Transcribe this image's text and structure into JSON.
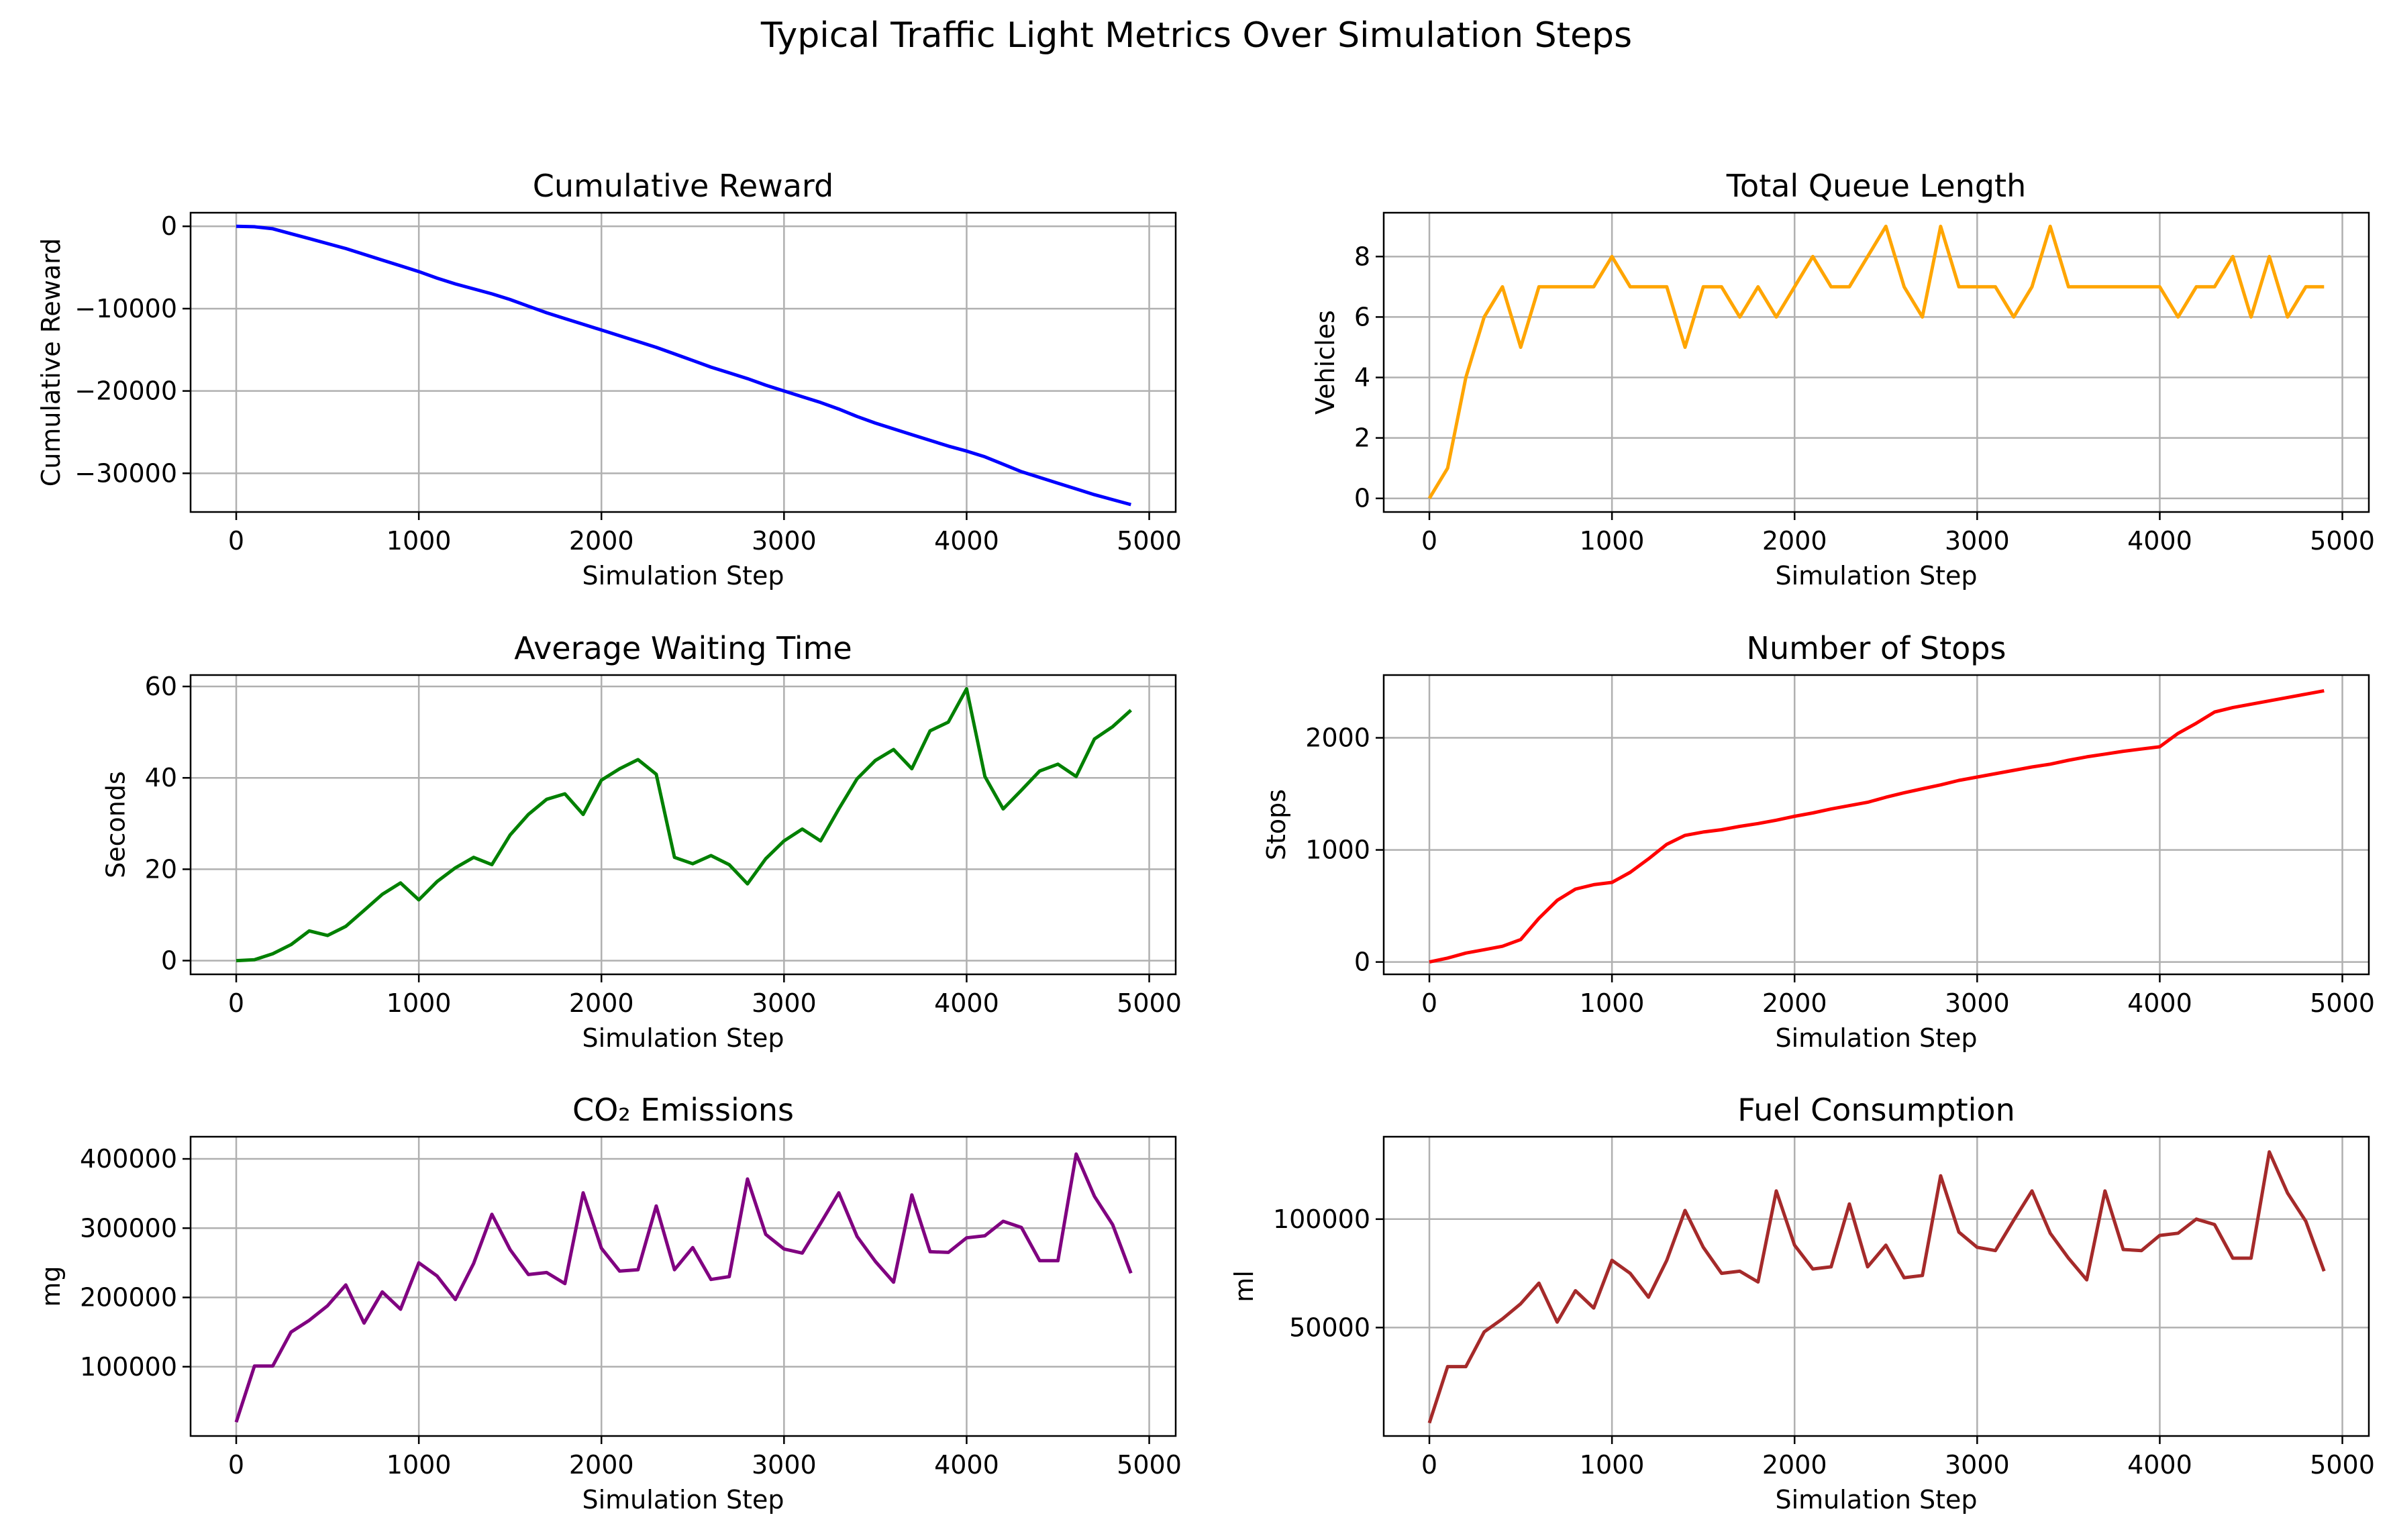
{
  "figure": {
    "title": "Typical Traffic Light Metrics Over Simulation Steps"
  },
  "chart_data": [
    {
      "type": "line",
      "title": "Cumulative Reward",
      "xlabel": "Simulation Step",
      "ylabel": "Cumulative Reward",
      "xlim": [
        -250,
        5145
      ],
      "ylim": [
        -34700,
        1650
      ],
      "xticks": [
        0,
        1000,
        2000,
        3000,
        4000,
        5000
      ],
      "yticks": [
        0,
        -10000,
        -20000,
        -30000
      ],
      "ytick_labels": [
        "0",
        "−10000",
        "−20000",
        "−30000"
      ],
      "grid": true,
      "color": "#0000ff",
      "x": [
        0,
        100,
        200,
        300,
        400,
        500,
        600,
        700,
        800,
        900,
        1000,
        1100,
        1200,
        1300,
        1400,
        1500,
        1600,
        1700,
        1800,
        1900,
        2000,
        2100,
        2200,
        2300,
        2400,
        2500,
        2600,
        2700,
        2800,
        2900,
        3000,
        3100,
        3200,
        3300,
        3400,
        3500,
        3600,
        3700,
        3800,
        3900,
        4000,
        4100,
        4200,
        4300,
        4400,
        4500,
        4600,
        4700,
        4800,
        4900
      ],
      "y": [
        0,
        -50,
        -300,
        -900,
        -1500,
        -2100,
        -2700,
        -3400,
        -4100,
        -4800,
        -5500,
        -6300,
        -7000,
        -7600,
        -8200,
        -8900,
        -9700,
        -10500,
        -11200,
        -11900,
        -12600,
        -13300,
        -14000,
        -14700,
        -15500,
        -16300,
        -17100,
        -17800,
        -18500,
        -19300,
        -20000,
        -20700,
        -21400,
        -22200,
        -23100,
        -23900,
        -24600,
        -25300,
        -26000,
        -26700,
        -27300,
        -28000,
        -28900,
        -29800,
        -30500,
        -31200,
        -31900,
        -32600,
        -33200,
        -33800
      ]
    },
    {
      "type": "line",
      "title": "Total Queue Length",
      "xlabel": "Simulation Step",
      "ylabel": "Vehicles",
      "xlim": [
        -250,
        5145
      ],
      "ylim": [
        -0.45,
        9.45
      ],
      "xticks": [
        0,
        1000,
        2000,
        3000,
        4000,
        5000
      ],
      "yticks": [
        0,
        2,
        4,
        6,
        8
      ],
      "ytick_labels": [
        "0",
        "2",
        "4",
        "6",
        "8"
      ],
      "grid": true,
      "color": "#ffa500",
      "x": [
        0,
        100,
        200,
        300,
        400,
        500,
        600,
        700,
        800,
        900,
        1000,
        1100,
        1200,
        1300,
        1400,
        1500,
        1600,
        1700,
        1800,
        1900,
        2000,
        2100,
        2200,
        2300,
        2400,
        2500,
        2600,
        2700,
        2800,
        2900,
        3000,
        3100,
        3200,
        3300,
        3400,
        3500,
        3600,
        3700,
        3800,
        3900,
        4000,
        4100,
        4200,
        4300,
        4400,
        4500,
        4600,
        4700,
        4800,
        4900
      ],
      "y": [
        0,
        1,
        4,
        6,
        7,
        5,
        7,
        7,
        7,
        7,
        8,
        7,
        7,
        7,
        5,
        7,
        7,
        6,
        7,
        6,
        7,
        8,
        7,
        7,
        8,
        9,
        7,
        6,
        9,
        7,
        7,
        7,
        6,
        7,
        9,
        7,
        7,
        7,
        7,
        7,
        7,
        6,
        7,
        7,
        8,
        6,
        8,
        6,
        7,
        7
      ]
    },
    {
      "type": "line",
      "title": "Average Waiting Time",
      "xlabel": "Simulation Step",
      "ylabel": "Seconds",
      "xlim": [
        -250,
        5145
      ],
      "ylim": [
        -3,
        62.5
      ],
      "xticks": [
        0,
        1000,
        2000,
        3000,
        4000,
        5000
      ],
      "yticks": [
        0,
        20,
        40,
        60
      ],
      "ytick_labels": [
        "0",
        "20",
        "40",
        "60"
      ],
      "grid": true,
      "color": "#008000",
      "x": [
        0,
        100,
        200,
        300,
        400,
        500,
        600,
        700,
        800,
        900,
        1000,
        1100,
        1200,
        1300,
        1400,
        1500,
        1600,
        1700,
        1800,
        1900,
        2000,
        2100,
        2200,
        2300,
        2400,
        2500,
        2600,
        2700,
        2800,
        2900,
        3000,
        3100,
        3200,
        3300,
        3400,
        3500,
        3600,
        3700,
        3800,
        3900,
        4000,
        4100,
        4200,
        4300,
        4400,
        4500,
        4600,
        4700,
        4800,
        4900
      ],
      "y": [
        0,
        0.2,
        1.5,
        3.5,
        6.5,
        5.5,
        7.5,
        11,
        14.5,
        17,
        13.3,
        17.3,
        20.3,
        22.6,
        21,
        27.5,
        32,
        35.3,
        36.5,
        32,
        39.5,
        42,
        44,
        40.8,
        22.6,
        21.2,
        23,
        21,
        16.8,
        22.3,
        26.2,
        28.8,
        26.2,
        33.2,
        39.8,
        43.8,
        46.2,
        42,
        50.3,
        52.2,
        59.5,
        40.3,
        33.2,
        37.3,
        41.5,
        43,
        40.3,
        48.5,
        51.2,
        54.8
      ]
    },
    {
      "type": "line",
      "title": "Number of Stops",
      "xlabel": "Simulation Step",
      "ylabel": "Stops",
      "xlim": [
        -250,
        5145
      ],
      "ylim": [
        -110,
        2560
      ],
      "xticks": [
        0,
        1000,
        2000,
        3000,
        4000,
        5000
      ],
      "yticks": [
        0,
        1000,
        2000
      ],
      "ytick_labels": [
        "0",
        "1000",
        "2000"
      ],
      "grid": true,
      "color": "#ff0000",
      "x": [
        0,
        100,
        200,
        300,
        400,
        500,
        600,
        700,
        800,
        900,
        1000,
        1100,
        1200,
        1300,
        1400,
        1500,
        1600,
        1700,
        1800,
        1900,
        2000,
        2100,
        2200,
        2300,
        2400,
        2500,
        2600,
        2700,
        2800,
        2900,
        3000,
        3100,
        3200,
        3300,
        3400,
        3500,
        3600,
        3700,
        3800,
        3900,
        4000,
        4100,
        4200,
        4300,
        4400,
        4500,
        4600,
        4700,
        4800,
        4900
      ],
      "y": [
        0,
        35,
        80,
        110,
        140,
        200,
        390,
        550,
        650,
        690,
        710,
        800,
        920,
        1050,
        1130,
        1160,
        1180,
        1210,
        1235,
        1265,
        1300,
        1330,
        1365,
        1395,
        1425,
        1470,
        1510,
        1545,
        1580,
        1620,
        1650,
        1680,
        1710,
        1740,
        1765,
        1800,
        1830,
        1855,
        1880,
        1900,
        1920,
        2040,
        2130,
        2230,
        2270,
        2300,
        2330,
        2360,
        2390,
        2420
      ]
    },
    {
      "type": "line",
      "title": "CO₂ Emissions",
      "xlabel": "Simulation Step",
      "ylabel": "mg",
      "xlim": [
        -250,
        5145
      ],
      "ylim": [
        0,
        432000
      ],
      "xticks": [
        0,
        1000,
        2000,
        3000,
        4000,
        5000
      ],
      "yticks": [
        100000,
        200000,
        300000,
        400000
      ],
      "ytick_labels": [
        "100000",
        "200000",
        "300000",
        "400000"
      ],
      "grid": true,
      "color": "#800080",
      "x": [
        0,
        100,
        200,
        300,
        400,
        500,
        600,
        700,
        800,
        900,
        1000,
        1100,
        1200,
        1300,
        1400,
        1500,
        1600,
        1700,
        1800,
        1900,
        2000,
        2100,
        2200,
        2300,
        2400,
        2500,
        2600,
        2700,
        2800,
        2900,
        3000,
        3100,
        3200,
        3300,
        3400,
        3500,
        3600,
        3700,
        3800,
        3900,
        4000,
        4100,
        4200,
        4300,
        4400,
        4500,
        4600,
        4700,
        4800,
        4900
      ],
      "y": [
        20000,
        101000,
        101000,
        150000,
        167000,
        188000,
        218000,
        163000,
        208000,
        183000,
        250000,
        231000,
        197000,
        249000,
        320000,
        269000,
        233000,
        236000,
        220000,
        351000,
        271000,
        238000,
        240000,
        332000,
        240000,
        272000,
        226000,
        230000,
        371000,
        291000,
        270000,
        264000,
        307000,
        351000,
        288000,
        252000,
        222000,
        348000,
        266000,
        265000,
        286000,
        289000,
        310000,
        301000,
        253000,
        253000,
        407000,
        346000,
        305000,
        235000
      ]
    },
    {
      "type": "line",
      "title": "Fuel Consumption",
      "xlabel": "Simulation Step",
      "ylabel": "ml",
      "xlim": [
        -250,
        5145
      ],
      "ylim": [
        0,
        138000
      ],
      "xticks": [
        0,
        1000,
        2000,
        3000,
        4000,
        5000
      ],
      "yticks": [
        50000,
        100000
      ],
      "ytick_labels": [
        "50000",
        "100000"
      ],
      "grid": true,
      "color": "#a52a2a",
      "x": [
        0,
        100,
        200,
        300,
        400,
        500,
        600,
        700,
        800,
        900,
        1000,
        1100,
        1200,
        1300,
        1400,
        1500,
        1600,
        1700,
        1800,
        1900,
        2000,
        2100,
        2200,
        2300,
        2400,
        2500,
        2600,
        2700,
        2800,
        2900,
        3000,
        3100,
        3200,
        3300,
        3400,
        3500,
        3600,
        3700,
        3800,
        3900,
        4000,
        4100,
        4200,
        4300,
        4400,
        4500,
        4600,
        4700,
        4800,
        4900
      ],
      "y": [
        6000,
        32000,
        32000,
        48000,
        54000,
        61000,
        70500,
        52500,
        67000,
        59000,
        81000,
        75000,
        64000,
        81000,
        104000,
        87000,
        75000,
        76000,
        71000,
        113000,
        88000,
        77000,
        78000,
        107000,
        78000,
        88000,
        73000,
        74000,
        120000,
        94000,
        87000,
        85500,
        99500,
        113000,
        93500,
        82000,
        72000,
        113000,
        86000,
        85500,
        92500,
        93500,
        100000,
        97500,
        82000,
        82000,
        131000,
        112000,
        99000,
        76000
      ]
    }
  ]
}
